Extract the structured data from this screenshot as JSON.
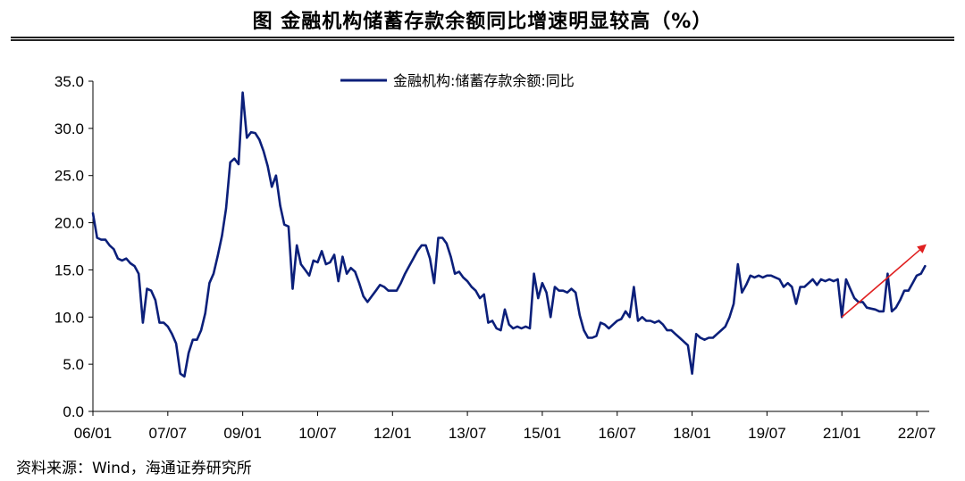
{
  "title": "图  金融机构储蓄存款余额同比增速明显较高（%）",
  "source": "资料来源：Wind，海通证券研究所",
  "chart_data": {
    "type": "line",
    "x_ticks": [
      "06/01",
      "07/07",
      "09/01",
      "10/07",
      "12/01",
      "13/07",
      "15/01",
      "16/07",
      "18/01",
      "19/07",
      "21/01",
      "22/07"
    ],
    "ylim": [
      0,
      35
    ],
    "y_ticks": [
      "0.0",
      "5.0",
      "10.0",
      "15.0",
      "20.0",
      "25.0",
      "30.0",
      "35.0"
    ],
    "grid": false,
    "legend_position": "top-center",
    "series": [
      {
        "name": "金融机构:储蓄存款余额:同比",
        "color": "#0b1f7a",
        "x": [
          "2006-01",
          "2006-02",
          "2006-03",
          "2006-04",
          "2006-05",
          "2006-06",
          "2006-07",
          "2006-08",
          "2006-09",
          "2006-10",
          "2006-11",
          "2006-12",
          "2007-01",
          "2007-02",
          "2007-03",
          "2007-04",
          "2007-05",
          "2007-06",
          "2007-07",
          "2007-08",
          "2007-09",
          "2007-10",
          "2007-11",
          "2007-12",
          "2008-01",
          "2008-02",
          "2008-03",
          "2008-04",
          "2008-05",
          "2008-06",
          "2008-07",
          "2008-08",
          "2008-09",
          "2008-10",
          "2008-11",
          "2008-12",
          "2009-01",
          "2009-02",
          "2009-03",
          "2009-04",
          "2009-05",
          "2009-06",
          "2009-07",
          "2009-08",
          "2009-09",
          "2009-10",
          "2009-11",
          "2009-12",
          "2010-01",
          "2010-02",
          "2010-03",
          "2010-04",
          "2010-05",
          "2010-06",
          "2010-07",
          "2010-08",
          "2010-09",
          "2010-10",
          "2010-11",
          "2010-12",
          "2011-01",
          "2011-02",
          "2011-03",
          "2011-04",
          "2011-05",
          "2011-06",
          "2011-07",
          "2011-08",
          "2011-09",
          "2011-10",
          "2011-11",
          "2011-12",
          "2012-01",
          "2012-02",
          "2012-03",
          "2012-04",
          "2012-05",
          "2012-06",
          "2012-07",
          "2012-08",
          "2012-09",
          "2012-10",
          "2012-11",
          "2012-12",
          "2013-01",
          "2013-02",
          "2013-03",
          "2013-04",
          "2013-05",
          "2013-06",
          "2013-07",
          "2013-08",
          "2013-09",
          "2013-10",
          "2013-11",
          "2013-12",
          "2014-01",
          "2014-02",
          "2014-03",
          "2014-04",
          "2014-05",
          "2014-06",
          "2014-07",
          "2014-08",
          "2014-09",
          "2014-10",
          "2014-11",
          "2014-12",
          "2015-01",
          "2015-02",
          "2015-03",
          "2015-04",
          "2015-05",
          "2015-06",
          "2015-07",
          "2015-08",
          "2015-09",
          "2015-10",
          "2015-11",
          "2015-12",
          "2016-01",
          "2016-02",
          "2016-03",
          "2016-04",
          "2016-05",
          "2016-06",
          "2016-07",
          "2016-08",
          "2016-09",
          "2016-10",
          "2016-11",
          "2016-12",
          "2017-01",
          "2017-02",
          "2017-03",
          "2017-04",
          "2017-05",
          "2017-06",
          "2017-07",
          "2017-08",
          "2017-09",
          "2017-10",
          "2017-11",
          "2017-12",
          "2018-01",
          "2018-02",
          "2018-03",
          "2018-04",
          "2018-05",
          "2018-06",
          "2018-07",
          "2018-08",
          "2018-09",
          "2018-10",
          "2018-11",
          "2018-12",
          "2019-01",
          "2019-02",
          "2019-03",
          "2019-04",
          "2019-05",
          "2019-06",
          "2019-07",
          "2019-08",
          "2019-09",
          "2019-10",
          "2019-11",
          "2019-12",
          "2020-01",
          "2020-02",
          "2020-03",
          "2020-04",
          "2020-05",
          "2020-06",
          "2020-07",
          "2020-08",
          "2020-09",
          "2020-10",
          "2020-11",
          "2020-12",
          "2021-01",
          "2021-02",
          "2021-03",
          "2021-04",
          "2021-05",
          "2021-06",
          "2021-07",
          "2021-08",
          "2021-09",
          "2021-10",
          "2021-11",
          "2021-12",
          "2022-01",
          "2022-02",
          "2022-03",
          "2022-04",
          "2022-05",
          "2022-06",
          "2022-07",
          "2022-08",
          "2022-09"
        ],
        "y": [
          21.0,
          18.4,
          18.2,
          18.2,
          17.6,
          17.2,
          16.2,
          16.0,
          16.2,
          15.7,
          15.4,
          14.6,
          9.4,
          13.0,
          12.8,
          11.8,
          9.4,
          9.4,
          9.0,
          8.2,
          7.2,
          4.0,
          3.7,
          6.2,
          7.6,
          7.6,
          8.6,
          10.4,
          13.6,
          14.6,
          16.5,
          18.6,
          21.5,
          26.4,
          26.8,
          26.2,
          33.8,
          29.0,
          29.6,
          29.5,
          28.8,
          27.6,
          26.0,
          23.8,
          25.0,
          21.8,
          19.8,
          19.6,
          13.0,
          17.6,
          15.6,
          15.0,
          14.4,
          16.0,
          15.8,
          17.0,
          15.6,
          15.8,
          16.6,
          13.8,
          16.4,
          14.6,
          15.2,
          14.8,
          13.6,
          12.2,
          11.6,
          12.2,
          12.8,
          13.4,
          13.2,
          12.8,
          12.8,
          12.8,
          13.6,
          14.6,
          15.4,
          16.2,
          17.0,
          17.6,
          17.6,
          16.2,
          13.6,
          18.4,
          18.4,
          17.8,
          16.4,
          14.6,
          14.8,
          14.2,
          13.8,
          13.2,
          12.8,
          12.0,
          12.4,
          9.4,
          9.6,
          8.8,
          8.6,
          10.8,
          9.2,
          8.8,
          9.0,
          8.8,
          9.0,
          8.8,
          14.6,
          12.0,
          13.6,
          12.6,
          10.0,
          13.2,
          12.8,
          12.8,
          12.6,
          13.0,
          12.6,
          10.2,
          8.6,
          7.8,
          7.8,
          8.0,
          9.4,
          9.2,
          8.8,
          9.2,
          9.6,
          9.8,
          10.6,
          10.0,
          13.2,
          9.6,
          10.0,
          9.6,
          9.6,
          9.4,
          9.6,
          9.2,
          8.6,
          8.6,
          8.2,
          7.8,
          7.4,
          7.0,
          4.0,
          8.2,
          7.8,
          7.6,
          7.8,
          7.8,
          8.2,
          8.6,
          9.0,
          10.0,
          11.4,
          15.6,
          12.6,
          13.4,
          14.4,
          14.2,
          14.4,
          14.2,
          14.4,
          14.4,
          14.2,
          14.0,
          13.2,
          13.6,
          13.2,
          11.4,
          13.2,
          13.2,
          13.6,
          14.0,
          13.4,
          14.0,
          13.8,
          14.0,
          13.8,
          14.0,
          10.0,
          14.0,
          13.0,
          12.0,
          11.6,
          11.6,
          11.0,
          10.9,
          10.8,
          10.6,
          10.6,
          14.6,
          10.6,
          11.0,
          11.8,
          12.8,
          12.8,
          13.6,
          14.4,
          14.6,
          15.4
        ]
      }
    ],
    "annotations": [
      {
        "type": "arrow",
        "color": "#e02020",
        "from": [
          "2021-01",
          10.0
        ],
        "to": [
          "2022-09",
          17.6
        ]
      }
    ]
  }
}
